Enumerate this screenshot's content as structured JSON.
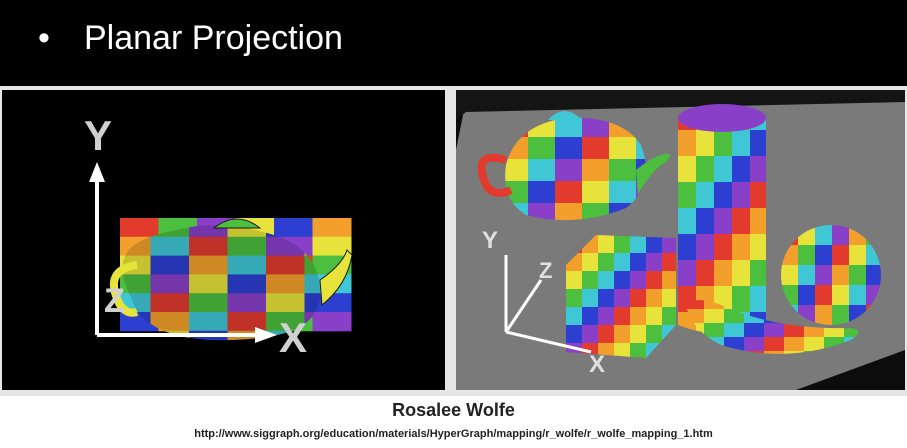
{
  "slide": {
    "bullet": "•",
    "title": "Planar Projection",
    "author": "Rosalee Wolfe",
    "url": "http://www.siggraph.org/education/materials/HyperGraph/mapping/r_wolfe/r_wolfe_mapping_1.htm"
  },
  "left_figure": {
    "axis_y": "Y",
    "axis_z": "Z",
    "axis_x": "X"
  },
  "right_figure": {
    "axis_y": "Y",
    "axis_z": "Z",
    "axis_x": "X"
  },
  "colors": {
    "stripes": [
      "#e23b2e",
      "#f2a02b",
      "#e8e33a",
      "#4cbf3f",
      "#3fc7d6",
      "#2d3fd0",
      "#8a3fc9"
    ],
    "background": "#000000",
    "floor": "#7a7a7a"
  }
}
